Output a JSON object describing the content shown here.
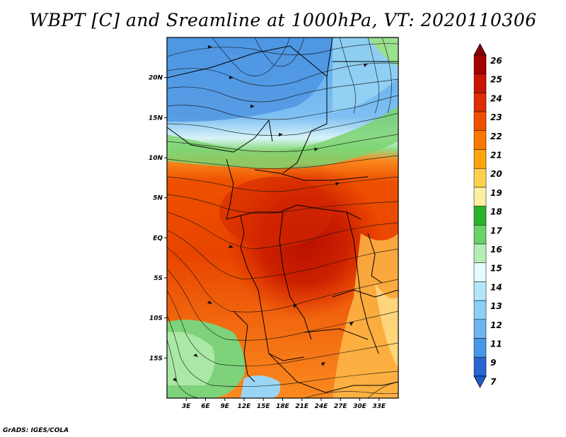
{
  "title": "WBPT [C] and Sreamline at 1000hPa, VT: 2020110306",
  "map": {
    "lon_range": [
      0,
      36
    ],
    "lat_range": [
      -20,
      25
    ],
    "lat_ticks": [
      {
        "value": 20,
        "label": "20N"
      },
      {
        "value": 15,
        "label": "15N"
      },
      {
        "value": 10,
        "label": "10N"
      },
      {
        "value": 5,
        "label": "5N"
      },
      {
        "value": 0,
        "label": "EQ"
      },
      {
        "value": -5,
        "label": "5S"
      },
      {
        "value": -10,
        "label": "10S"
      },
      {
        "value": -15,
        "label": "15S"
      }
    ],
    "lon_ticks": [
      {
        "value": 3,
        "label": "3E"
      },
      {
        "value": 6,
        "label": "6E"
      },
      {
        "value": 9,
        "label": "9E"
      },
      {
        "value": 12,
        "label": "12E"
      },
      {
        "value": 15,
        "label": "15E"
      },
      {
        "value": 18,
        "label": "18E"
      },
      {
        "value": 21,
        "label": "21E"
      },
      {
        "value": 24,
        "label": "24E"
      },
      {
        "value": 27,
        "label": "27E"
      },
      {
        "value": 30,
        "label": "30E"
      },
      {
        "value": 33,
        "label": "33E"
      }
    ]
  },
  "colorbar": {
    "levels": [
      {
        "label": "26",
        "color": "#a50000"
      },
      {
        "label": "25",
        "color": "#c81400"
      },
      {
        "label": "24",
        "color": "#dc2c00"
      },
      {
        "label": "23",
        "color": "#ee5000"
      },
      {
        "label": "22",
        "color": "#fa7800"
      },
      {
        "label": "21",
        "color": "#fda50f"
      },
      {
        "label": "20",
        "color": "#fed050"
      },
      {
        "label": "19",
        "color": "#fff0a0"
      },
      {
        "label": "18",
        "color": "#2ab22a"
      },
      {
        "label": "17",
        "color": "#6ad26a"
      },
      {
        "label": "16",
        "color": "#b4eeb4"
      },
      {
        "label": "15",
        "color": "#e6fafa"
      },
      {
        "label": "14",
        "color": "#b4e6fa"
      },
      {
        "label": "13",
        "color": "#8cd0f5"
      },
      {
        "label": "12",
        "color": "#6eb4f0"
      },
      {
        "label": "11",
        "color": "#4896e6"
      },
      {
        "label": "9",
        "color": "#2864d2"
      },
      {
        "label": "7",
        "color": ""
      }
    ],
    "top_color": "#8c0000",
    "bottom_color": "#1e5ac8"
  },
  "footer": "GrADS: IGES/COLA"
}
